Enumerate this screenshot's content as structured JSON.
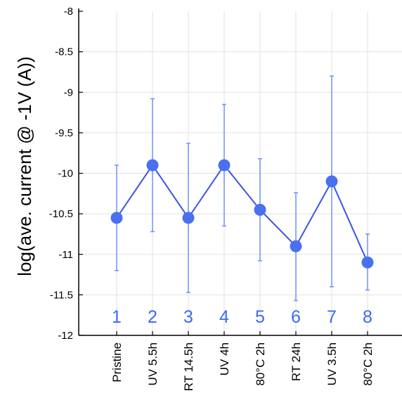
{
  "chart_data": {
    "type": "line",
    "ylabel": "log(ave. current @ -1V (A))",
    "xlabel": "",
    "title": "",
    "ylim": [
      -12,
      -8
    ],
    "yticks": [
      "-8",
      "-8.5",
      "-9",
      "-9.5",
      "-10",
      "-10.5",
      "-11",
      "-11.5",
      "-12"
    ],
    "ytick_values": [
      -8,
      -8.5,
      -9,
      -9.5,
      -10,
      -10.5,
      -11,
      -11.5,
      -12
    ],
    "grid": true,
    "legend": "none",
    "colors": {
      "series": "#3a54e8",
      "marker": "#4a70f0",
      "errorbar": "#6e92f2",
      "index_text": "#3a6af2",
      "axis": "#000000",
      "grid": "#e2e2e2"
    },
    "categories": [
      "Pristine",
      "UV 5.5h",
      "RT 14.5h",
      "UV 4h",
      "80°C 2h",
      "RT 24h",
      "UV 3.5h",
      "80°C 2h"
    ],
    "index_labels": [
      "1",
      "2",
      "3",
      "4",
      "5",
      "6",
      "7",
      "8"
    ],
    "series": [
      {
        "values": [
          -10.55,
          -9.9,
          -10.55,
          -9.9,
          -10.45,
          -10.9,
          -10.1,
          -11.1
        ],
        "err_high": [
          -9.9,
          -9.08,
          -9.63,
          -9.15,
          -9.82,
          -10.24,
          -8.8,
          -10.75
        ],
        "err_low": [
          -11.2,
          -10.72,
          -11.47,
          -10.65,
          -11.08,
          -11.57,
          -11.4,
          -11.44
        ]
      }
    ]
  }
}
